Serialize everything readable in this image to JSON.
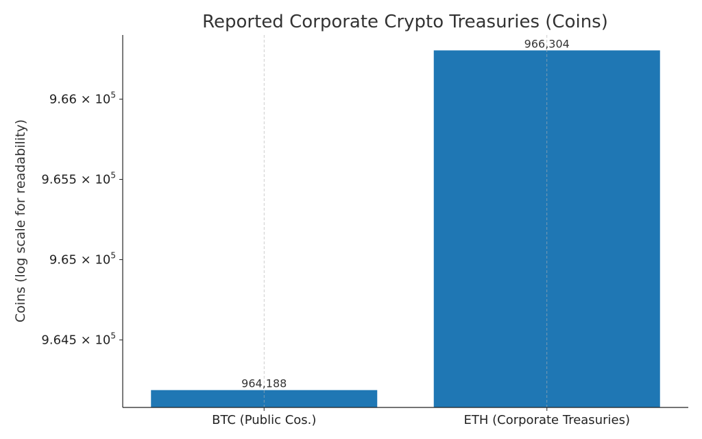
{
  "chart_data": {
    "type": "bar",
    "title": "Reported Corporate Crypto Treasuries (Coins)",
    "xlabel": "",
    "ylabel": "Coins (log scale for readability)",
    "yscale": "log",
    "categories": [
      "BTC (Public Cos.)",
      "ETH (Corporate Treasuries)"
    ],
    "values": [
      964188,
      966304
    ],
    "data_labels": [
      "964,188",
      "966,304"
    ],
    "ylim": [
      964080,
      966400
    ],
    "yticks": [
      {
        "value": 964500,
        "mantissa": "9.645",
        "exponent": "5"
      },
      {
        "value": 965000,
        "mantissa": "9.65",
        "exponent": "5"
      },
      {
        "value": 965500,
        "mantissa": "9.655",
        "exponent": "5"
      },
      {
        "value": 966000,
        "mantissa": "9.66",
        "exponent": "5"
      }
    ],
    "grid": "x-dashed",
    "bar_color": "#1f77b4"
  }
}
